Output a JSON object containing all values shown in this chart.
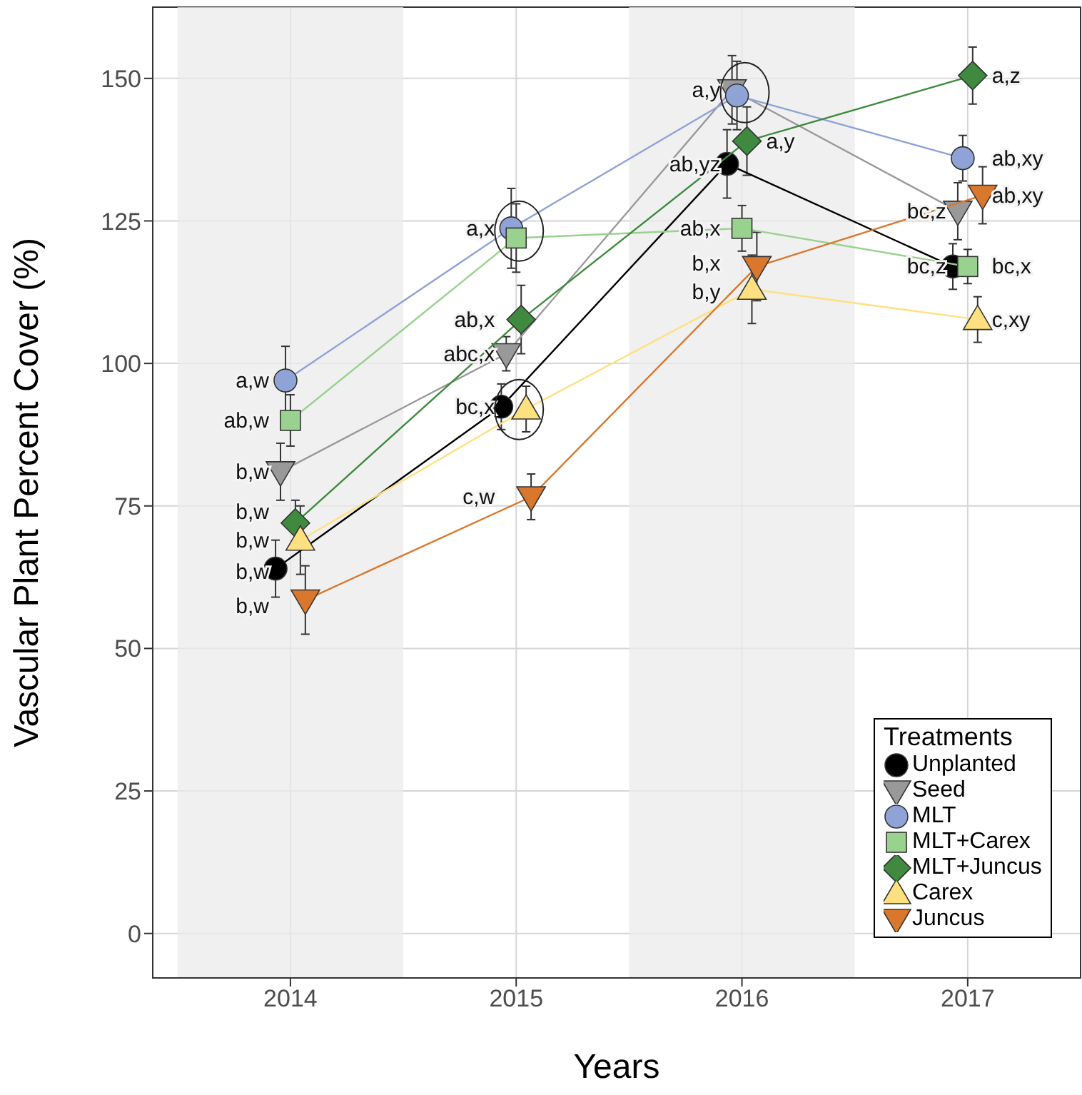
{
  "chart_data": {
    "type": "line",
    "xlabel": "Years",
    "ylabel": "Vascular Plant Percent Cover (%)",
    "legend_title": "Treatments",
    "categories": [
      "2014",
      "2015",
      "2016",
      "2017"
    ],
    "ylim": [
      -7.8,
      162.5
    ],
    "yticks": [
      0,
      25,
      50,
      75,
      100,
      125,
      150
    ],
    "grid": true,
    "legend": "bottom right",
    "bands": [
      {
        "axis": "x",
        "from": "2014",
        "to": "2014",
        "color": "#ebebeb"
      },
      {
        "axis": "x",
        "from": "2016",
        "to": "2016",
        "color": "#ebebeb"
      }
    ],
    "series": [
      {
        "name": "Unplanted",
        "color": "#000000",
        "marker": "circle",
        "values": [
          64,
          92.4,
          135,
          117
        ],
        "errors": [
          5,
          4,
          6,
          4
        ]
      },
      {
        "name": "Seed",
        "color": "#999999",
        "marker": "triangle-down",
        "values": [
          81,
          101.7,
          148,
          126.7
        ],
        "errors": [
          5,
          3,
          6,
          5
        ]
      },
      {
        "name": "MLT",
        "color": "#8fa3d6",
        "marker": "circle",
        "values": [
          97,
          123.7,
          147,
          136
        ],
        "errors": [
          6,
          7,
          6,
          4
        ]
      },
      {
        "name": "MLT+Carex",
        "color": "#99d18f",
        "marker": "square",
        "values": [
          90,
          122,
          123.7,
          117
        ],
        "errors": [
          4.5,
          6,
          4,
          3
        ]
      },
      {
        "name": "MLT+Juncus",
        "color": "#3f8a3f",
        "marker": "diamond",
        "values": [
          72,
          107.7,
          139,
          150.5
        ],
        "errors": [
          4,
          6,
          6,
          5
        ]
      },
      {
        "name": "Carex",
        "color": "#ffe080",
        "marker": "triangle",
        "values": [
          69,
          92,
          113,
          107.7
        ],
        "errors": [
          6,
          4,
          6,
          4
        ]
      },
      {
        "name": "Juncus",
        "color": "#d9782d",
        "marker": "triangle-down",
        "values": [
          58.5,
          76.6,
          117,
          129.5
        ],
        "errors": [
          6,
          4,
          6,
          5
        ]
      }
    ],
    "annotations": [
      {
        "text": "a,w",
        "x": "2014",
        "y": 97
      },
      {
        "text": "ab,w",
        "x": "2014",
        "y": 90
      },
      {
        "text": "b,w",
        "x": "2014",
        "y": 81
      },
      {
        "text": "b,w",
        "x": "2014",
        "y": 72
      },
      {
        "text": "b,w",
        "x": "2014",
        "y": 69
      },
      {
        "text": "b,w",
        "x": "2014",
        "y": 64
      },
      {
        "text": "b,w",
        "x": "2014",
        "y": 58.5
      },
      {
        "text": "a,x",
        "x": "2015",
        "y": 123.7
      },
      {
        "text": "ab,x",
        "x": "2015",
        "y": 107.7
      },
      {
        "text": "abc,x",
        "x": "2015",
        "y": 101.7
      },
      {
        "text": "bc,x",
        "x": "2015",
        "y": 92.4
      },
      {
        "text": "c,w",
        "x": "2015",
        "y": 76.6
      },
      {
        "text": "a,y",
        "x": "2016",
        "y": 148
      },
      {
        "text": "a,y",
        "x": "2016",
        "y": 139
      },
      {
        "text": "ab,yz",
        "x": "2016",
        "y": 135
      },
      {
        "text": "ab,x",
        "x": "2016",
        "y": 123.7
      },
      {
        "text": "b,x",
        "x": "2016",
        "y": 117
      },
      {
        "text": "b,y",
        "x": "2016",
        "y": 113
      },
      {
        "text": "a,z",
        "x": "2017",
        "y": 150.5
      },
      {
        "text": "ab,xy",
        "x": "2017",
        "y": 136
      },
      {
        "text": "ab,xy",
        "x": "2017",
        "y": 129.5
      },
      {
        "text": "bc,z",
        "x": "2017",
        "y": 126.7
      },
      {
        "text": "bc,z",
        "x": "2017",
        "y": 117
      },
      {
        "text": "bc,x",
        "x": "2017",
        "y": 117
      },
      {
        "text": "c,xy",
        "x": "2017",
        "y": 107.7
      }
    ]
  }
}
